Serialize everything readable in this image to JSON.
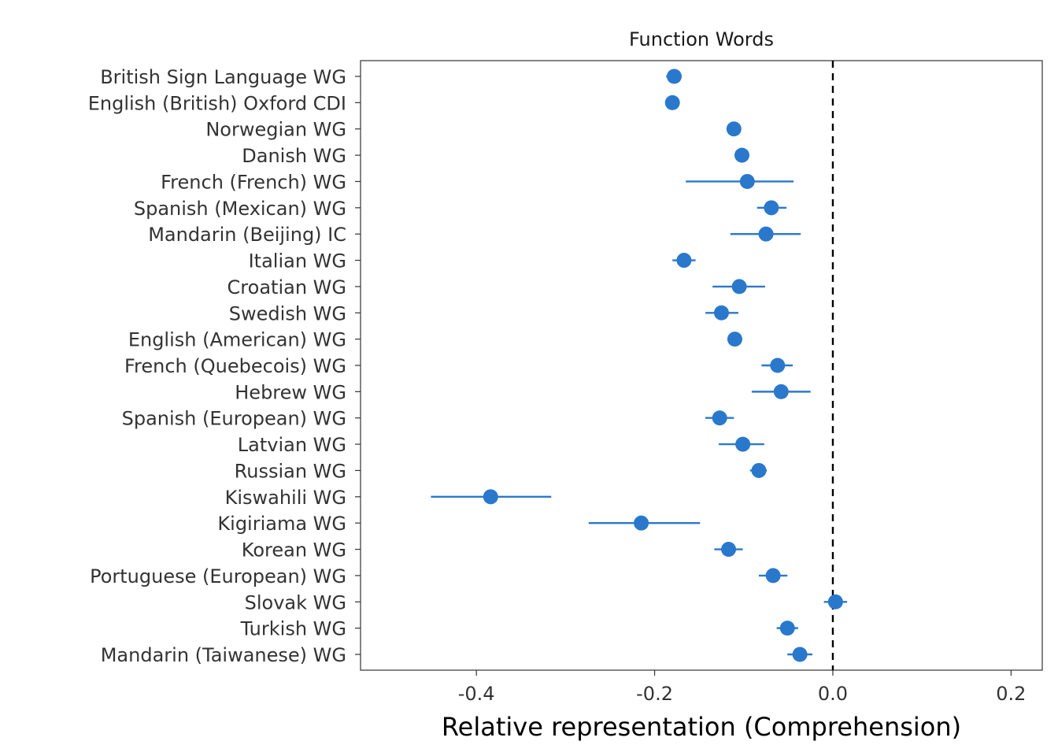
{
  "chart_data": {
    "type": "scatter",
    "facet_title": "Function Words",
    "xlabel": "Relative representation (Comprehension)",
    "ylabel": "",
    "xlim": [
      -0.53,
      0.235
    ],
    "x_ticks": [
      -0.4,
      -0.2,
      0.0,
      0.2
    ],
    "x_tick_labels": [
      "-0.4",
      "-0.2",
      "0.0",
      "0.2"
    ],
    "reference_line": 0.0,
    "grid": false,
    "legend": "none",
    "color": "#2a78cc",
    "series": [
      {
        "label": "British Sign Language WG",
        "value": -0.178,
        "low": -0.187,
        "high": -0.17
      },
      {
        "label": "English (British) Oxford CDI",
        "value": -0.18,
        "low": -0.185,
        "high": -0.175
      },
      {
        "label": "Norwegian WG",
        "value": -0.111,
        "low": -0.116,
        "high": -0.106
      },
      {
        "label": "Danish WG",
        "value": -0.102,
        "low": -0.107,
        "high": -0.097
      },
      {
        "label": "French (French) WG",
        "value": -0.096,
        "low": -0.165,
        "high": -0.044
      },
      {
        "label": "Spanish (Mexican) WG",
        "value": -0.069,
        "low": -0.085,
        "high": -0.052
      },
      {
        "label": "Mandarin (Beijing) IC",
        "value": -0.075,
        "low": -0.115,
        "high": -0.036
      },
      {
        "label": "Italian WG",
        "value": -0.167,
        "low": -0.18,
        "high": -0.154
      },
      {
        "label": "Croatian WG",
        "value": -0.105,
        "low": -0.135,
        "high": -0.076
      },
      {
        "label": "Swedish WG",
        "value": -0.125,
        "low": -0.143,
        "high": -0.106
      },
      {
        "label": "English (American) WG",
        "value": -0.11,
        "low": -0.115,
        "high": -0.105
      },
      {
        "label": "French (Quebecois) WG",
        "value": -0.062,
        "low": -0.08,
        "high": -0.045
      },
      {
        "label": "Hebrew WG",
        "value": -0.058,
        "low": -0.091,
        "high": -0.025
      },
      {
        "label": "Spanish (European) WG",
        "value": -0.127,
        "low": -0.143,
        "high": -0.111
      },
      {
        "label": "Latvian WG",
        "value": -0.101,
        "low": -0.128,
        "high": -0.077
      },
      {
        "label": "Russian WG",
        "value": -0.083,
        "low": -0.093,
        "high": -0.074
      },
      {
        "label": "Kiswahili WG",
        "value": -0.384,
        "low": -0.451,
        "high": -0.316
      },
      {
        "label": "Kigiriama WG",
        "value": -0.215,
        "low": -0.274,
        "high": -0.149
      },
      {
        "label": "Korean WG",
        "value": -0.117,
        "low": -0.133,
        "high": -0.101
      },
      {
        "label": "Portuguese (European) WG",
        "value": -0.067,
        "low": -0.083,
        "high": -0.051
      },
      {
        "label": "Slovak WG",
        "value": 0.003,
        "low": -0.01,
        "high": 0.016
      },
      {
        "label": "Turkish WG",
        "value": -0.051,
        "low": -0.063,
        "high": -0.039
      },
      {
        "label": "Mandarin (Taiwanese) WG",
        "value": -0.037,
        "low": -0.051,
        "high": -0.023
      }
    ]
  }
}
